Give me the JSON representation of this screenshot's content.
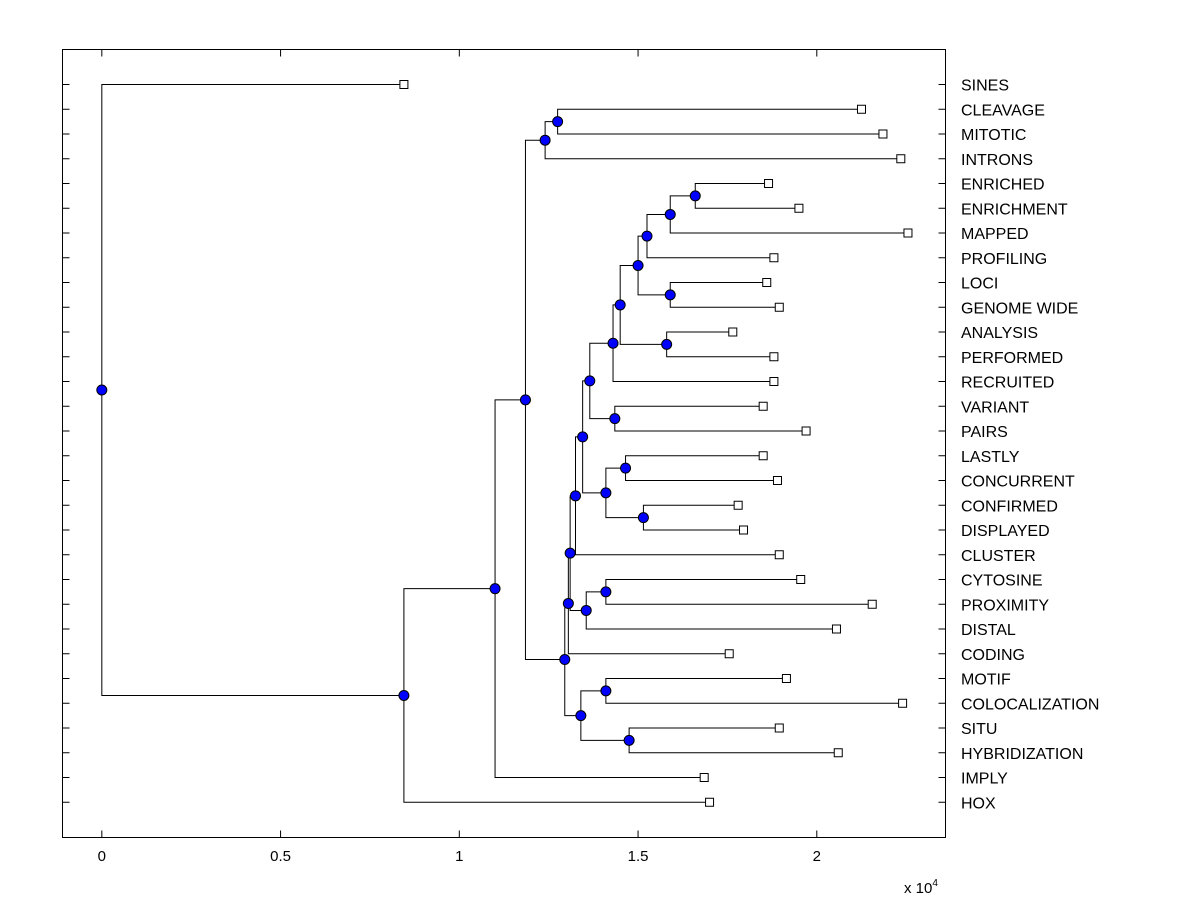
{
  "chart_data": {
    "type": "dendrogram",
    "orientation": "horizontal",
    "xlim": [
      -0.11,
      2.36
    ],
    "x_multiplier_label": "x 10",
    "x_multiplier_exponent": "4",
    "x_ticks": [
      {
        "value": 0,
        "label": "0"
      },
      {
        "value": 0.5,
        "label": "0.5"
      },
      {
        "value": 1,
        "label": "1"
      },
      {
        "value": 1.5,
        "label": "1.5"
      },
      {
        "value": 2,
        "label": "2"
      }
    ],
    "leaves": [
      {
        "label": "SINES",
        "x": 0.845
      },
      {
        "label": "CLEAVAGE",
        "x": 2.125
      },
      {
        "label": "MITOTIC",
        "x": 2.185
      },
      {
        "label": "INTRONS",
        "x": 2.235
      },
      {
        "label": "ENRICHED",
        "x": 1.865
      },
      {
        "label": "ENRICHMENT",
        "x": 1.95
      },
      {
        "label": "MAPPED",
        "x": 2.255
      },
      {
        "label": "PROFILING",
        "x": 1.88
      },
      {
        "label": "LOCI",
        "x": 1.86
      },
      {
        "label": "GENOME WIDE",
        "x": 1.895
      },
      {
        "label": "ANALYSIS",
        "x": 1.765
      },
      {
        "label": "PERFORMED",
        "x": 1.88
      },
      {
        "label": "RECRUITED",
        "x": 1.88
      },
      {
        "label": "VARIANT",
        "x": 1.85
      },
      {
        "label": "PAIRS",
        "x": 1.97
      },
      {
        "label": "LASTLY",
        "x": 1.85
      },
      {
        "label": "CONCURRENT",
        "x": 1.89
      },
      {
        "label": "CONFIRMED",
        "x": 1.78
      },
      {
        "label": "DISPLAYED",
        "x": 1.795
      },
      {
        "label": "CLUSTER",
        "x": 1.895
      },
      {
        "label": "CYTOSINE",
        "x": 1.955
      },
      {
        "label": "PROXIMITY",
        "x": 2.155
      },
      {
        "label": "DISTAL",
        "x": 2.055
      },
      {
        "label": "CODING",
        "x": 1.755
      },
      {
        "label": "MOTIF",
        "x": 1.915
      },
      {
        "label": "COLOCALIZATION",
        "x": 2.24
      },
      {
        "label": "SITU",
        "x": 1.895
      },
      {
        "label": "HYBRIDIZATION",
        "x": 2.06
      },
      {
        "label": "IMPLY",
        "x": 1.685
      },
      {
        "label": "HOX",
        "x": 1.7
      }
    ],
    "merges": [
      {
        "id": "n1",
        "a": "CLEAVAGE",
        "b": "MITOTIC",
        "x": 1.275
      },
      {
        "id": "n2",
        "a": "n1",
        "b": "INTRONS",
        "x": 1.24
      },
      {
        "id": "n3",
        "a": "ENRICHED",
        "b": "ENRICHMENT",
        "x": 1.66
      },
      {
        "id": "n4",
        "a": "n3",
        "b": "MAPPED",
        "x": 1.59
      },
      {
        "id": "n5",
        "a": "n4",
        "b": "PROFILING",
        "x": 1.525
      },
      {
        "id": "n6",
        "a": "LOCI",
        "b": "GENOME WIDE",
        "x": 1.59
      },
      {
        "id": "n7",
        "a": "n5",
        "b": "n6",
        "x": 1.5
      },
      {
        "id": "n8",
        "a": "ANALYSIS",
        "b": "PERFORMED",
        "x": 1.58
      },
      {
        "id": "n9",
        "a": "n7",
        "b": "n8",
        "x": 1.45
      },
      {
        "id": "n10",
        "a": "n9",
        "b": "RECRUITED",
        "x": 1.43
      },
      {
        "id": "n11",
        "a": "VARIANT",
        "b": "PAIRS",
        "x": 1.435
      },
      {
        "id": "n12",
        "a": "n10",
        "b": "n11",
        "x": 1.365
      },
      {
        "id": "n13",
        "a": "LASTLY",
        "b": "CONCURRENT",
        "x": 1.465
      },
      {
        "id": "n14",
        "a": "CONFIRMED",
        "b": "DISPLAYED",
        "x": 1.515
      },
      {
        "id": "n15",
        "a": "n13",
        "b": "n14",
        "x": 1.41
      },
      {
        "id": "n16",
        "a": "n12",
        "b": "n15",
        "x": 1.345
      },
      {
        "id": "n17",
        "a": "n16",
        "b": "CLUSTER",
        "x": 1.325
      },
      {
        "id": "n18",
        "a": "CYTOSINE",
        "b": "PROXIMITY",
        "x": 1.41
      },
      {
        "id": "n19",
        "a": "n18",
        "b": "DISTAL",
        "x": 1.355
      },
      {
        "id": "n20",
        "a": "n17",
        "b": "n19",
        "x": 1.31
      },
      {
        "id": "n21",
        "a": "n20",
        "b": "CODING",
        "x": 1.305
      },
      {
        "id": "n22",
        "a": "MOTIF",
        "b": "COLOCALIZATION",
        "x": 1.41
      },
      {
        "id": "n23",
        "a": "SITU",
        "b": "HYBRIDIZATION",
        "x": 1.475
      },
      {
        "id": "n24",
        "a": "n22",
        "b": "n23",
        "x": 1.34
      },
      {
        "id": "n25",
        "a": "n21",
        "b": "n24",
        "x": 1.295
      },
      {
        "id": "n26",
        "a": "n2",
        "b": "n25",
        "x": 1.185
      },
      {
        "id": "n27",
        "a": "n26",
        "b": "IMPLY",
        "x": 1.1
      },
      {
        "id": "n28",
        "a": "n27",
        "b": "HOX",
        "x": 0.845
      },
      {
        "id": "n29",
        "a": "SINES",
        "b": "n28",
        "x": 0.0
      }
    ],
    "colors": {
      "node": "#0000ff",
      "line": "#000000",
      "leaf_marker_fill": "#ffffff"
    },
    "grid": false
  }
}
